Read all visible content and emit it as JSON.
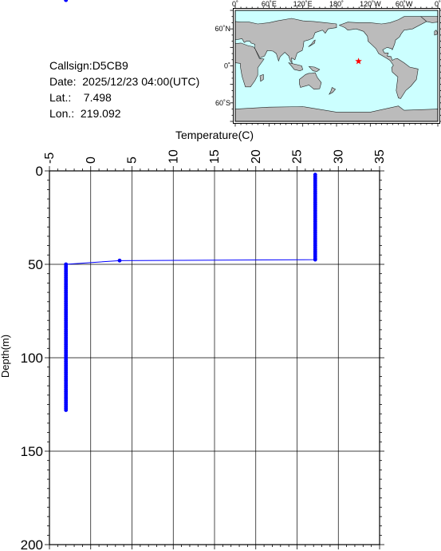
{
  "info": {
    "callsign": "Callsign:D5CB9",
    "date": "Date:  2025/12/23 04:00(UTC)",
    "lat": "Lat.:    7.498",
    "lon": "Lon.:  219.092"
  },
  "map": {
    "lon_labels": [
      "0˚",
      "60˚E",
      "120˚E",
      "180˚",
      "120˚W",
      "60˚W",
      "0˚"
    ],
    "lat_labels": [
      "60˚N",
      "0˚",
      "60˚S"
    ],
    "ocean_color": "#ccffff",
    "land_color": "#bbbbbb",
    "marker_color": "#ff0000",
    "marker": {
      "lon": 219.092,
      "lat": 7.498
    },
    "marker_icon": "star-icon"
  },
  "chart_data": {
    "type": "line",
    "xlabel": "Temperature(C)",
    "ylabel": "Depth(m)",
    "xlim": [
      -5,
      35
    ],
    "ylim": [
      0,
      200
    ],
    "y_inverted": true,
    "x_axis_position": "top",
    "x_ticks": [
      -5,
      0,
      5,
      10,
      15,
      20,
      25,
      30,
      35
    ],
    "y_ticks": [
      0,
      50,
      100,
      150,
      200
    ],
    "grid": true,
    "series_color": "#0000ff",
    "series": [
      {
        "temperature": [
          27.2,
          27.2,
          27.2,
          27.2,
          27.2,
          27.2,
          27.2,
          27.2,
          27.2,
          27.2,
          27.2,
          27.2,
          27.2,
          27.2,
          27.2,
          27.2,
          27.2,
          27.2,
          27.2,
          27.2,
          27.2,
          27.2,
          27.2,
          27.2,
          27.2,
          27.2,
          27.2,
          27.2,
          27.2,
          27.2,
          27.2,
          27.2,
          27.2,
          27.2,
          27.2,
          27.2,
          27.2,
          27.2,
          27.2,
          27.2,
          27.2,
          27.2,
          27.2,
          27.2,
          27.2,
          27.2,
          27.2,
          3.5,
          -3.0,
          -3.0,
          -3.0,
          -3.0,
          -3.0,
          -3.0,
          -3.0,
          -3.0,
          -3.0,
          -3.0,
          -3.0,
          -3.0,
          -3.0,
          -3.0,
          -3.0,
          -3.0,
          -3.0,
          -3.0,
          -3.0,
          -3.0,
          -3.0,
          -3.0,
          -3.0,
          -3.0,
          -3.0,
          -3.0,
          -3.0,
          -3.0,
          -3.0,
          -3.0,
          -3.0,
          -3.0,
          -3.0,
          -3.0,
          -3.0,
          -3.0,
          -3.0,
          -3.0,
          -3.0,
          -3.0,
          -3.0,
          -3.0,
          -3.0,
          -3.0,
          -3.0,
          -3.0,
          -3.0,
          -3.0,
          -3.0,
          -3.0,
          -3.0,
          -3.0,
          -3.0,
          -3.0,
          -3.0,
          -3.0,
          -3.0,
          -3.0,
          -3.0,
          -3.0,
          -3.0,
          -3.0,
          -3.0,
          -3.0,
          -3.0,
          -3.0,
          -3.0,
          -3.0,
          -3.0,
          -3.0,
          -3.0,
          -3.0,
          -3.0,
          -3.0,
          -3.0,
          -3.0,
          -3.0,
          -3.0,
          -3.0,
          -3.0,
          -3.0,
          -3.0
        ],
        "depth": [
          2,
          3,
          4,
          5,
          6,
          7,
          8,
          9,
          10,
          11,
          12,
          13,
          14,
          15,
          16,
          17,
          18,
          19,
          20,
          21,
          22,
          23,
          24,
          25,
          26,
          27,
          28,
          29,
          30,
          31,
          32,
          33,
          34,
          35,
          36,
          37,
          38,
          39,
          40,
          41,
          42,
          43,
          44,
          45,
          46,
          47,
          47.5,
          48,
          50,
          51,
          52,
          53,
          54,
          55,
          56,
          57,
          58,
          59,
          60,
          61,
          62,
          63,
          64,
          65,
          66,
          67,
          68,
          69,
          70,
          71,
          72,
          73,
          74,
          75,
          76,
          77,
          78,
          79,
          80,
          81,
          82,
          83,
          84,
          85,
          86,
          87,
          88,
          89,
          90,
          91,
          92,
          93,
          94,
          95,
          96,
          97,
          98,
          99,
          100,
          101,
          102,
          103,
          104,
          105,
          106,
          107,
          108,
          109,
          110,
          111,
          112,
          113,
          114,
          115,
          116,
          117,
          118,
          119,
          120,
          121,
          122,
          123,
          124,
          125,
          126,
          127,
          128
        ]
      }
    ]
  }
}
